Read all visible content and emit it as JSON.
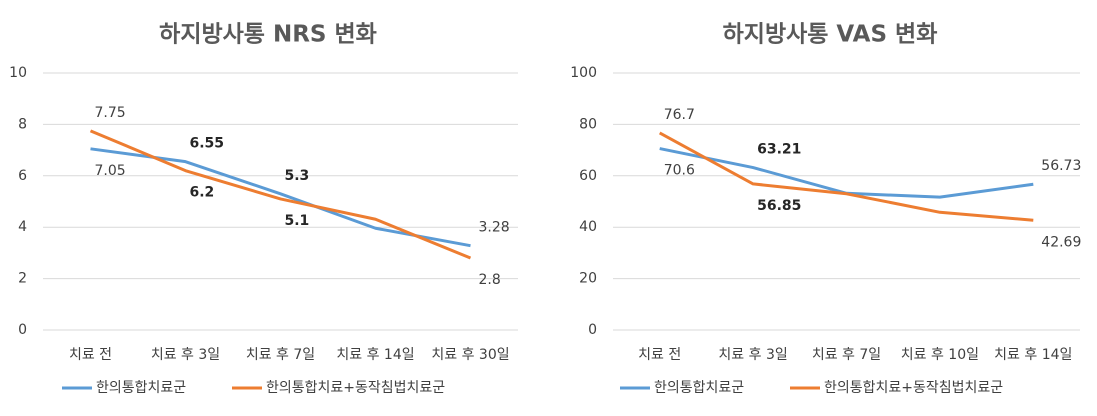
{
  "chart_data": [
    {
      "type": "line",
      "title": "하지방사통 NRS 변화",
      "categories": [
        "치료 전",
        "치료 후 3일",
        "치료 후 7일",
        "치료 후 14일",
        "치료 후 30일"
      ],
      "ylim": [
        0,
        10
      ],
      "yticks": [
        0,
        2,
        4,
        6,
        8,
        10
      ],
      "grid": true,
      "legend": "bottom-left",
      "series": [
        {
          "name": "한의통합치료군",
          "color": "#5b9bd5",
          "values": [
            7.05,
            6.55,
            5.3,
            3.96,
            3.28
          ],
          "value_labels": [
            "7.05",
            "6.55",
            "5.3",
            null,
            "3.28"
          ]
        },
        {
          "name": "한의통합치료+동작침법치료군",
          "color": "#ed7d31",
          "values": [
            7.75,
            6.2,
            5.1,
            4.31,
            2.8
          ],
          "value_labels": [
            "7.75",
            "6.2",
            "5.1",
            null,
            "2.8"
          ]
        }
      ]
    },
    {
      "type": "line",
      "title": "하지방사통 VAS 변화",
      "categories": [
        "치료 전",
        "치료 후 3일",
        "치료 후 7일",
        "치료 후 10일",
        "치료 후 14일"
      ],
      "ylim": [
        0,
        100
      ],
      "yticks": [
        0,
        20,
        40,
        60,
        80,
        100
      ],
      "grid": true,
      "legend": "bottom-left",
      "series": [
        {
          "name": "한의통합치료군",
          "color": "#5b9bd5",
          "values": [
            70.6,
            63.21,
            53.2,
            51.7,
            56.73
          ],
          "value_labels": [
            "70.6",
            "63.21",
            null,
            null,
            "56.73"
          ]
        },
        {
          "name": "한의통합치료+동작침법치료군",
          "color": "#ed7d31",
          "values": [
            76.7,
            56.85,
            53,
            45.8,
            42.69
          ],
          "value_labels": [
            "76.7",
            "56.85",
            null,
            null,
            "42.69"
          ]
        }
      ]
    }
  ]
}
